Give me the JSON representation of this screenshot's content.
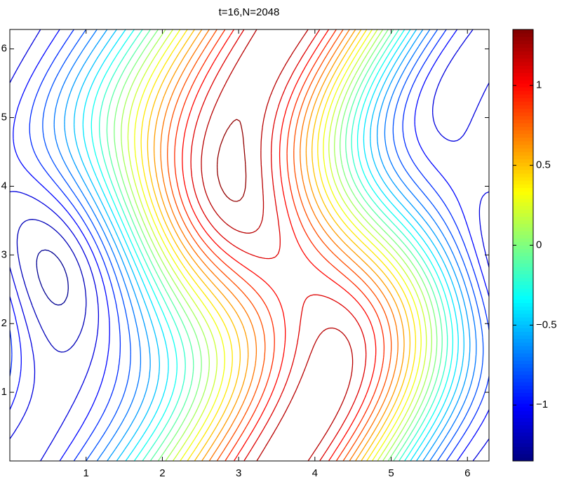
{
  "chart_data": {
    "type": "contour",
    "title": "t=16,N=2048",
    "xlim": [
      0,
      6.283
    ],
    "ylim": [
      0,
      6.283
    ],
    "xticks": [
      1,
      2,
      3,
      4,
      5,
      6
    ],
    "yticks": [
      1,
      2,
      3,
      4,
      5,
      6
    ],
    "levels": [
      -1.3,
      -1.2,
      -1.1,
      -1.0,
      -0.9,
      -0.8,
      -0.7,
      -0.6,
      -0.5,
      -0.4,
      -0.3,
      -0.2,
      -0.1,
      0,
      0.1,
      0.2,
      0.3,
      0.4,
      0.5,
      0.6,
      0.7,
      0.8,
      0.9,
      1.0,
      1.1,
      1.2,
      1.3
    ],
    "colormap": "jet",
    "clim": [
      -1.35,
      1.35
    ],
    "cticks": [
      {
        "value": -1,
        "label": "−1"
      },
      {
        "value": -0.5,
        "label": "−0.5"
      },
      0,
      0.5,
      1
    ]
  }
}
